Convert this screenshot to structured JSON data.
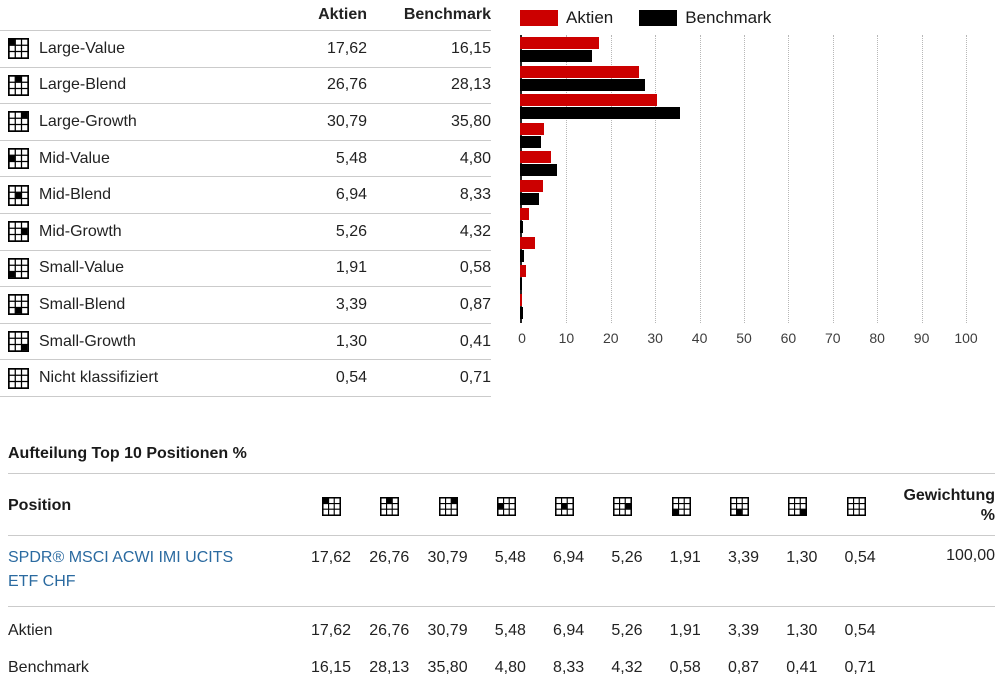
{
  "style_table": {
    "header": {
      "aktien": "Aktien",
      "benchmark": "Benchmark"
    },
    "rows": [
      {
        "label": "Large-Value",
        "box": 0,
        "aktien": "17,62",
        "benchmark": "16,15"
      },
      {
        "label": "Large-Blend",
        "box": 1,
        "aktien": "26,76",
        "benchmark": "28,13"
      },
      {
        "label": "Large-Growth",
        "box": 2,
        "aktien": "30,79",
        "benchmark": "35,80"
      },
      {
        "label": "Mid-Value",
        "box": 3,
        "aktien": "5,48",
        "benchmark": "4,80"
      },
      {
        "label": "Mid-Blend",
        "box": 4,
        "aktien": "6,94",
        "benchmark": "8,33"
      },
      {
        "label": "Mid-Growth",
        "box": 5,
        "aktien": "5,26",
        "benchmark": "4,32"
      },
      {
        "label": "Small-Value",
        "box": 6,
        "aktien": "1,91",
        "benchmark": "0,58"
      },
      {
        "label": "Small-Blend",
        "box": 7,
        "aktien": "3,39",
        "benchmark": "0,87"
      },
      {
        "label": "Small-Growth",
        "box": 8,
        "aktien": "1,30",
        "benchmark": "0,41"
      },
      {
        "label": "Nicht klassifiziert",
        "box": null,
        "aktien": "0,54",
        "benchmark": "0,71"
      }
    ]
  },
  "chart_data": {
    "type": "bar",
    "orientation": "horizontal",
    "categories": [
      "Large-Value",
      "Large-Blend",
      "Large-Growth",
      "Mid-Value",
      "Mid-Blend",
      "Mid-Growth",
      "Small-Value",
      "Small-Blend",
      "Small-Growth",
      "Nicht klassifiziert"
    ],
    "series": [
      {
        "name": "Aktien",
        "color": "#cc0000",
        "values": [
          17.62,
          26.76,
          30.79,
          5.48,
          6.94,
          5.26,
          1.91,
          3.39,
          1.3,
          0.54
        ]
      },
      {
        "name": "Benchmark",
        "color": "#000000",
        "values": [
          16.15,
          28.13,
          35.8,
          4.8,
          8.33,
          4.32,
          0.58,
          0.87,
          0.41,
          0.71
        ]
      }
    ],
    "xlim": [
      0,
      100
    ],
    "x_ticks": [
      "0",
      "10",
      "20",
      "30",
      "40",
      "50",
      "60",
      "70",
      "80",
      "90",
      "100"
    ],
    "grid": "vertical-dotted",
    "legend_position": "top"
  },
  "positions": {
    "title": "Aufteilung Top 10 Positionen %",
    "position_header": "Position",
    "weight_header_line1": "Gewichtung",
    "weight_header_line2": "%",
    "column_boxes": [
      0,
      1,
      2,
      3,
      4,
      5,
      6,
      7,
      8,
      null
    ],
    "rows": [
      {
        "name": "SPDR® MSCI ACWI IMI UCITS ETF CHF",
        "is_link": true,
        "values": [
          "17,62",
          "26,76",
          "30,79",
          "5,48",
          "6,94",
          "5,26",
          "1,91",
          "3,39",
          "1,30",
          "0,54"
        ],
        "weight": "100,00"
      },
      {
        "name": "Aktien",
        "is_link": false,
        "values": [
          "17,62",
          "26,76",
          "30,79",
          "5,48",
          "6,94",
          "5,26",
          "1,91",
          "3,39",
          "1,30",
          "0,54"
        ],
        "weight": ""
      },
      {
        "name": "Benchmark",
        "is_link": false,
        "values": [
          "16,15",
          "28,13",
          "35,80",
          "4,80",
          "8,33",
          "4,32",
          "0,58",
          "0,87",
          "0,41",
          "0,71"
        ],
        "weight": ""
      }
    ]
  },
  "colors": {
    "accent_red": "#cc0000",
    "bar_black": "#000000",
    "link_blue": "#2a6aa0"
  }
}
